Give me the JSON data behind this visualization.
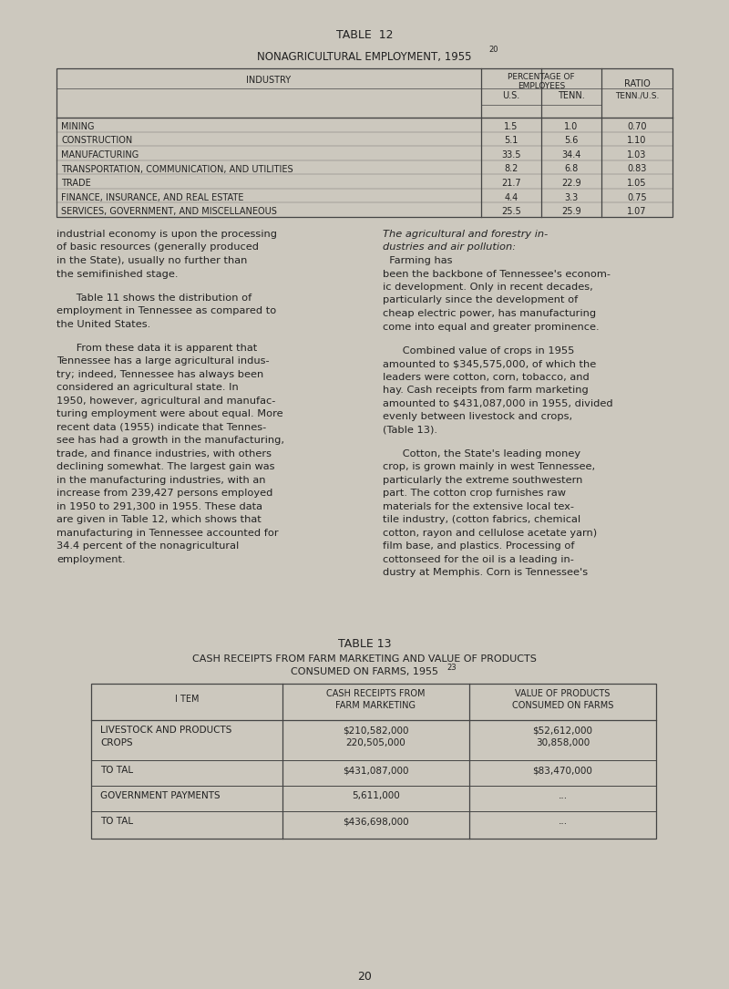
{
  "bg_color": "#ccc8be",
  "title12": "TABLE  12",
  "subtitle12": "NONAGRICULTURAL EMPLOYMENT, 1955",
  "superscript12": "20",
  "table12_rows": [
    [
      "MINING",
      "1.5",
      "1.0",
      "0.70"
    ],
    [
      "CONSTRUCTION",
      "5.1",
      "5.6",
      "1.10"
    ],
    [
      "MANUFACTURING",
      "33.5",
      "34.4",
      "1.03"
    ],
    [
      "TRANSPORTATION, COMMUNICATION, AND UTILITIES",
      "8.2",
      "6.8",
      "0.83"
    ],
    [
      "TRADE",
      "21.7",
      "22.9",
      "1.05"
    ],
    [
      "FINANCE, INSURANCE, AND REAL ESTATE",
      "4.4",
      "3.3",
      "0.75"
    ],
    [
      "SERVICES, GOVERNMENT, AND MISCELLANEOUS",
      "25.5",
      "25.9",
      "1.07"
    ]
  ],
  "left_paragraphs": [
    "industrial economy is upon the processing\nof basic resources (generally produced\nin the State), usually no further than\nthe semifinished stage.",
    "      Table 11 shows the distribution of\nemployment in Tennessee as compared to\nthe United States.",
    "      From these data it is apparent that\nTennessee has a large agricultural indus-\ntry; indeed, Tennessee has always been\nconsidered an agricultural state. In\n1950, however, agricultural and manufac-\nturing employment were about equal. More\nrecent data (1955) indicate that Tennes-\nsee has had a growth in the manufacturing,\ntrade, and finance industries, with others\ndeclining somewhat. The largest gain was\nin the manufacturing industries, with an\nincrease from 239,427 persons employed\nin 1950 to 291,300 in 1955. These data\nare given in Table 12, which shows that\nmanufacturing in Tennessee accounted for\n34.4 percent of the nonagricultural\nemployment."
  ],
  "right_para0_italic": "The agricultural and forestry in-\ndustries and air pollution:",
  "right_para0_normal": "  Farming has\nbeen the backbone of Tennessee's econom-\nic development. Only in recent decades,\nparticularly since the development of\ncheap electric power, has manufacturing\ncome into equal and greater prominence.",
  "right_paragraphs": [
    "      Combined value of crops in 1955\namounted to $345,575,000, of which the\nleaders were cotton, corn, tobacco, and\nhay. Cash receipts from farm marketing\namounted to $431,087,000 in 1955, divided\nevenly between livestock and crops,\n(Table 13).",
    "      Cotton, the State's leading money\ncrop, is grown mainly in west Tennessee,\nparticularly the extreme southwestern\npart. The cotton crop furnishes raw\nmaterials for the extensive local tex-\ntile industry, (cotton fabrics, chemical\ncotton, rayon and cellulose acetate yarn)\nfilm base, and plastics. Processing of\ncottonseed for the oil is a leading in-\ndustry at Memphis. Corn is Tennessee's"
  ],
  "title13": "TABLE 13",
  "subtitle13_line1": "CASH RECEIPTS FROM FARM MARKETING AND VALUE OF PRODUCTS",
  "subtitle13_line2": "CONSUMED ON FARMS, 1955",
  "superscript13": "23",
  "table13_rows": [
    [
      "LIVESTOCK AND PRODUCTS\nCROPS",
      "$210,582,000\n220,505,000",
      "$52,612,000\n30,858,000"
    ],
    [
      "TO TAL",
      "$431,087,000",
      "$83,470,000"
    ],
    [
      "GOVERNMENT PAYMENTS",
      "5,611,000",
      "..."
    ],
    [
      "TO TAL",
      "$436,698,000",
      "..."
    ]
  ],
  "page_number": "20",
  "text_color": "#222222",
  "table_line_color": "#444444"
}
